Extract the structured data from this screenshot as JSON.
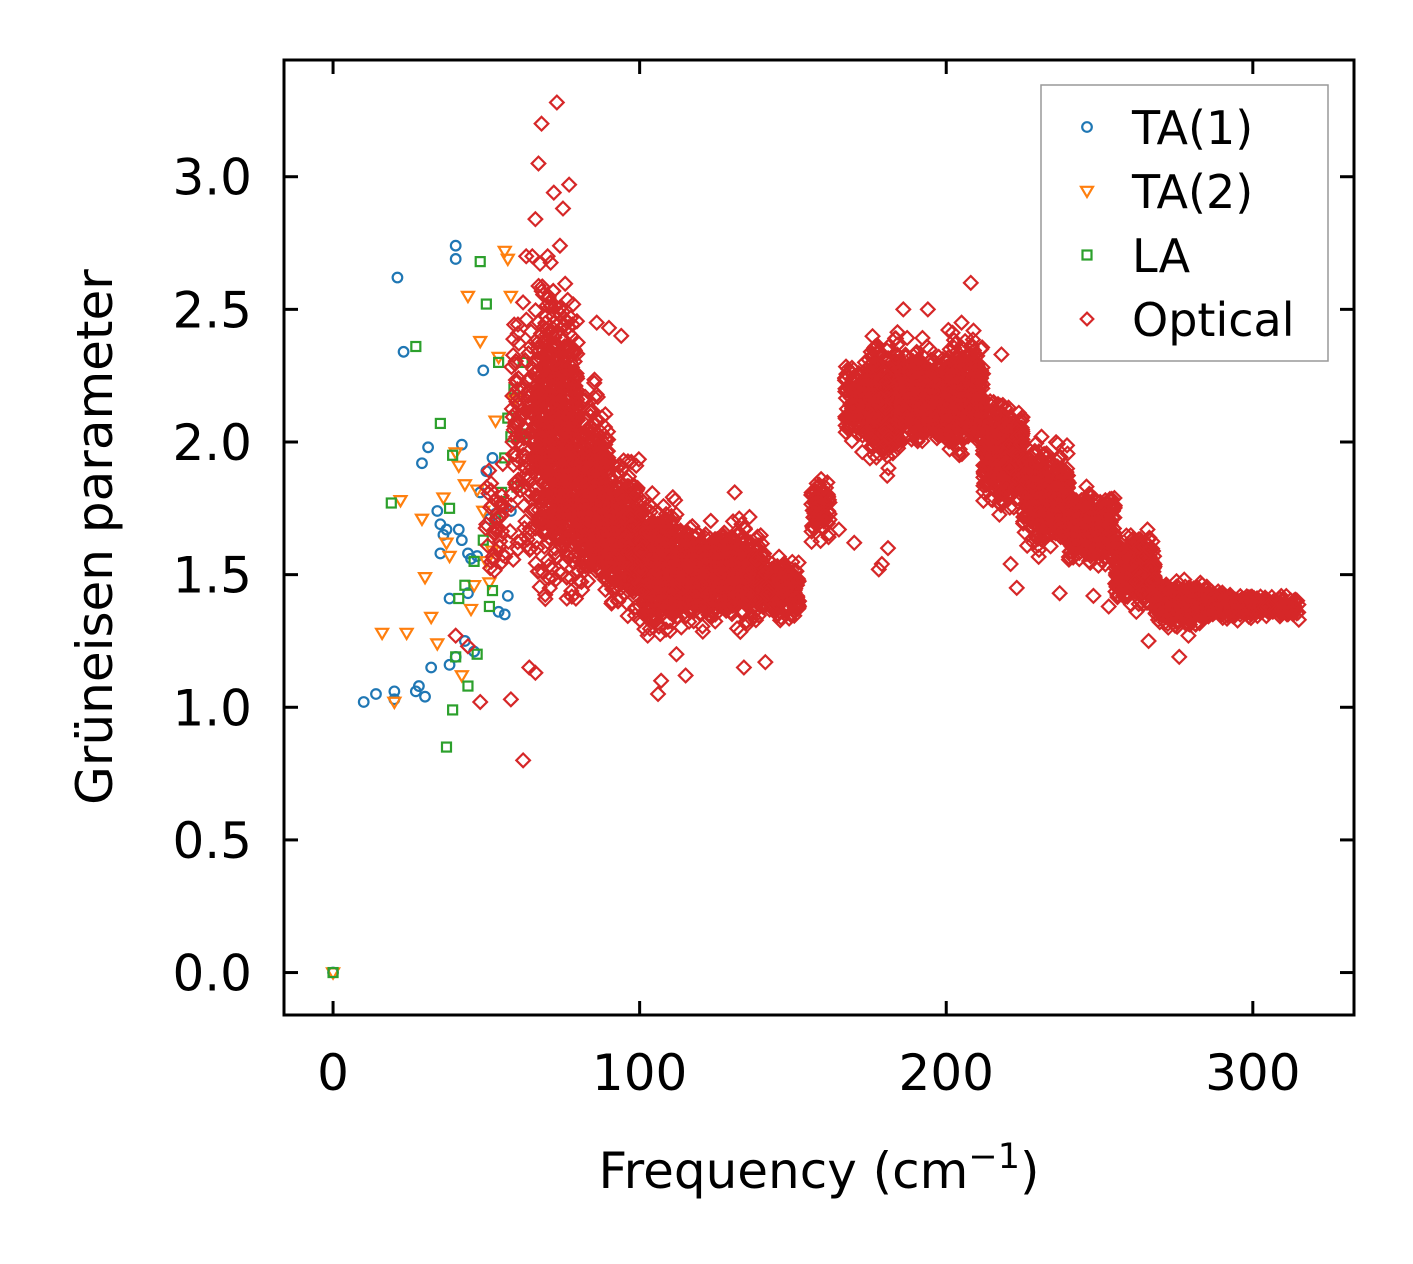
{
  "chart_data": {
    "type": "scatter",
    "title": "",
    "xlabel": "Frequency (cm",
    "xlabel_sup": "−1",
    "xlabel_close": ")",
    "ylabel": "Grüneisen parameter",
    "xlim": [
      -16,
      333
    ],
    "ylim": [
      -0.16,
      3.44
    ],
    "xticks": [
      0,
      100,
      200,
      300
    ],
    "xtick_labels": [
      "0",
      "100",
      "200",
      "300"
    ],
    "yticks": [
      0.0,
      0.5,
      1.0,
      1.5,
      2.0,
      2.5,
      3.0
    ],
    "ytick_labels": [
      "0.0",
      "0.5",
      "1.0",
      "1.5",
      "2.0",
      "2.5",
      "3.0"
    ],
    "grid": false,
    "legend_position": "top-right",
    "series": [
      {
        "name": "TA(1)",
        "marker": "circle",
        "color": "#1f77b4",
        "x": [
          0,
          10,
          14,
          20,
          20,
          23,
          27,
          28,
          30,
          32,
          34,
          35,
          35,
          36,
          38,
          38,
          40,
          40,
          40,
          41,
          42,
          42,
          43,
          44,
          44,
          46,
          47,
          48,
          49,
          50,
          51,
          52,
          53,
          54,
          56,
          57,
          58
        ],
        "y": [
          0.0,
          1.02,
          1.05,
          1.06,
          1.03,
          2.34,
          1.06,
          1.08,
          1.04,
          1.15,
          1.74,
          1.69,
          1.58,
          1.65,
          1.41,
          1.16,
          1.19,
          2.74,
          2.69,
          1.67,
          1.63,
          1.99,
          1.25,
          1.58,
          1.43,
          1.21,
          1.57,
          1.81,
          2.27,
          1.89,
          1.71,
          1.94,
          1.73,
          1.36,
          1.35,
          1.42,
          1.74
        ],
        "extra": [
          [
            21,
            2.62
          ],
          [
            29,
            1.92
          ],
          [
            31,
            1.98
          ],
          [
            37,
            1.67
          ],
          [
            45,
            1.56
          ]
        ]
      },
      {
        "name": "TA(2)",
        "marker": "triangle-down",
        "color": "#ff7f0e",
        "x": [
          0,
          16,
          20,
          22,
          24,
          29,
          30,
          32,
          34,
          36,
          37,
          38,
          40,
          41,
          42,
          43,
          44,
          45,
          46,
          47,
          48,
          49,
          50,
          51,
          52,
          53,
          54,
          56,
          57,
          58,
          59,
          60
        ],
        "y": [
          0.0,
          1.28,
          1.02,
          1.78,
          1.28,
          1.71,
          1.49,
          1.34,
          1.24,
          1.79,
          1.62,
          1.57,
          1.96,
          1.91,
          1.12,
          1.84,
          2.55,
          1.37,
          1.46,
          1.82,
          2.38,
          1.74,
          1.55,
          1.47,
          1.59,
          2.08,
          2.32,
          2.72,
          2.69,
          2.55,
          2.16,
          2.02
        ]
      },
      {
        "name": "LA",
        "marker": "square",
        "color": "#2ca02c",
        "x": [
          0,
          19,
          27,
          35,
          37,
          38,
          39,
          39,
          40,
          41,
          43,
          44,
          46,
          47,
          48,
          49,
          50,
          51,
          52,
          53,
          54,
          55,
          56,
          57,
          58,
          59,
          60,
          61,
          62,
          63
        ],
        "y": [
          0.0,
          1.77,
          2.36,
          2.07,
          0.85,
          1.75,
          1.95,
          0.99,
          1.19,
          1.41,
          1.46,
          1.08,
          1.55,
          1.2,
          2.68,
          1.63,
          2.52,
          1.38,
          1.44,
          1.71,
          2.3,
          1.81,
          1.94,
          2.09,
          2.02,
          2.2,
          1.83,
          2.03,
          2.3,
          2.03
        ]
      },
      {
        "name": "Optical",
        "marker": "diamond",
        "color": "#d62728",
        "clusters": [
          {
            "x": [
              49,
              58
            ],
            "y": [
              1.35,
              2.0
            ],
            "n": 40
          },
          {
            "x": [
              58,
              66
            ],
            "y": [
              1.4,
              2.65
            ],
            "n": 120
          },
          {
            "x": [
              66,
              72
            ],
            "y": [
              1.3,
              2.85
            ],
            "n": 260
          },
          {
            "x": [
              72,
              80
            ],
            "y": [
              1.2,
              2.7
            ],
            "n": 420
          },
          {
            "x": [
              80,
              90
            ],
            "y": [
              1.3,
              2.3
            ],
            "n": 420
          },
          {
            "x": [
              90,
              100
            ],
            "y": [
              1.3,
              2.0
            ],
            "n": 380
          },
          {
            "x": [
              100,
              112
            ],
            "y": [
              1.2,
              1.85
            ],
            "n": 420
          },
          {
            "x": [
              112,
              125
            ],
            "y": [
              1.25,
              1.75
            ],
            "n": 380
          },
          {
            "x": [
              125,
              140
            ],
            "y": [
              1.25,
              1.75
            ],
            "n": 380
          },
          {
            "x": [
              140,
              152
            ],
            "y": [
              1.3,
              1.6
            ],
            "n": 220
          },
          {
            "x": [
              156,
              162
            ],
            "y": [
              1.6,
              1.9
            ],
            "n": 80
          },
          {
            "x": [
              167,
              175
            ],
            "y": [
              1.95,
              2.35
            ],
            "n": 140
          },
          {
            "x": [
              175,
              185
            ],
            "y": [
              1.85,
              2.45
            ],
            "n": 420
          },
          {
            "x": [
              185,
              200
            ],
            "y": [
              1.95,
              2.4
            ],
            "n": 520
          },
          {
            "x": [
              200,
              212
            ],
            "y": [
              1.9,
              2.45
            ],
            "n": 420
          },
          {
            "x": [
              212,
              225
            ],
            "y": [
              1.7,
              2.2
            ],
            "n": 380
          },
          {
            "x": [
              225,
              240
            ],
            "y": [
              1.55,
              2.05
            ],
            "n": 380
          },
          {
            "x": [
              240,
              255
            ],
            "y": [
              1.5,
              1.85
            ],
            "n": 380
          },
          {
            "x": [
              255,
              268
            ],
            "y": [
              1.35,
              1.7
            ],
            "n": 320
          },
          {
            "x": [
              268,
              285
            ],
            "y": [
              1.28,
              1.5
            ],
            "n": 340
          },
          {
            "x": [
              285,
              300
            ],
            "y": [
              1.32,
              1.45
            ],
            "n": 260
          },
          {
            "x": [
              300,
              315
            ],
            "y": [
              1.33,
              1.43
            ],
            "n": 160
          }
        ],
        "outliers": [
          [
            73,
            3.28
          ],
          [
            68,
            3.2
          ],
          [
            67,
            3.05
          ],
          [
            72,
            2.94
          ],
          [
            77,
            2.97
          ],
          [
            75,
            2.88
          ],
          [
            66,
            2.84
          ],
          [
            74,
            2.74
          ],
          [
            63,
            2.7
          ],
          [
            62,
            0.8
          ],
          [
            66,
            1.13
          ],
          [
            64,
            1.15
          ],
          [
            58,
            1.03
          ],
          [
            48,
            1.02
          ],
          [
            44,
            1.23
          ],
          [
            40,
            1.27
          ],
          [
            107,
            1.1
          ],
          [
            106,
            1.05
          ],
          [
            134,
            1.15
          ],
          [
            141,
            1.17
          ],
          [
            115,
            1.12
          ],
          [
            112,
            1.2
          ],
          [
            131,
            1.81
          ],
          [
            94,
            2.4
          ],
          [
            90,
            2.43
          ],
          [
            165,
            1.67
          ],
          [
            170,
            1.62
          ],
          [
            178,
            1.52
          ],
          [
            181,
            1.6
          ],
          [
            179,
            1.54
          ],
          [
            208,
            2.6
          ],
          [
            205,
            2.45
          ],
          [
            218,
            2.33
          ],
          [
            221,
            1.54
          ],
          [
            223,
            1.45
          ],
          [
            237,
            1.43
          ],
          [
            248,
            1.42
          ],
          [
            253,
            1.38
          ],
          [
            262,
            1.36
          ],
          [
            276,
            1.19
          ],
          [
            266,
            1.25
          ],
          [
            279,
            1.27
          ],
          [
            315,
            1.33
          ],
          [
            194,
            2.5
          ],
          [
            186,
            2.5
          ],
          [
            152,
            1.4
          ],
          [
            156,
            1.8
          ],
          [
            86,
            2.45
          ],
          [
            65,
            2.7
          ],
          [
            70,
            2.7
          ]
        ]
      }
    ]
  }
}
